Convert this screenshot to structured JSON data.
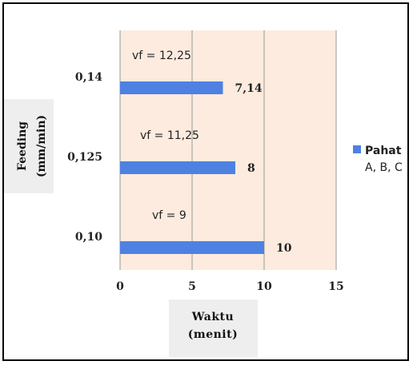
{
  "chart_data": {
    "type": "bar",
    "orientation": "horizontal",
    "categories": [
      "0,10",
      "0,125",
      "0,14"
    ],
    "series": [
      {
        "name": "Pahat A, B, C",
        "values": [
          10,
          8,
          7.14
        ],
        "color": "#4F81E2"
      }
    ],
    "data_labels": [
      "10",
      "8",
      "7,14"
    ],
    "annotations": [
      {
        "text": "vf = 9",
        "category": "0,10"
      },
      {
        "text": "vf = 11,25",
        "category": "0,125"
      },
      {
        "text": "vf = 12,25",
        "category": "0,14"
      }
    ],
    "xlim": [
      0,
      15
    ],
    "xticks": [
      "0",
      "5",
      "10",
      "15"
    ],
    "xlabel_lines": [
      "Waktu",
      "(menit)"
    ],
    "ylabel_lines": [
      "Feeding",
      "(mm/min)"
    ],
    "legend": {
      "position": "right",
      "line1": "Pahat",
      "line2": "A, B, C"
    },
    "colors": {
      "plot_background": "#FDEBDF",
      "bar": "#4F81E2",
      "gridline": "#999999",
      "label_box": "#EEEEEE"
    },
    "grid": true
  }
}
